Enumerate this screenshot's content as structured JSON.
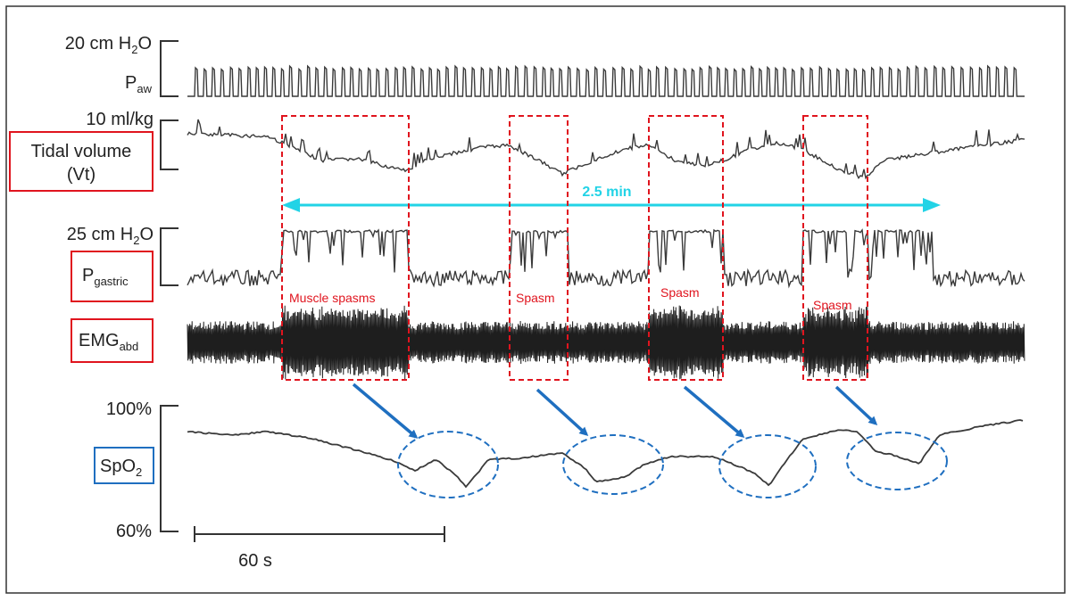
{
  "chart_data": {
    "type": "line",
    "colors": {
      "trace": "#3a3a3a",
      "spasm_box": "#e0141e",
      "duration_arrow": "#22d3e6",
      "desat_arrow": "#1f6fc0",
      "desat_ellipse": "#1f6fc0",
      "frame": "#333333"
    },
    "traces": [
      {
        "key": "paw",
        "scale": "20 cm H2O",
        "scale_main": "20 cm H",
        "scale_sub": "2",
        "scale_tail": "O",
        "name_main": "P",
        "name_sub": "aw",
        "boxed": false
      },
      {
        "key": "vt",
        "scale": "10 ml/kg",
        "name_line1": "Tidal volume",
        "name_line2": "(Vt)",
        "boxed": true,
        "box_color": "#e0141e"
      },
      {
        "key": "pgastric",
        "scale": "25 cm H2O",
        "scale_main": "25 cm H",
        "scale_sub": "2",
        "scale_tail": "O",
        "name_main": "P",
        "name_sub": "gastric",
        "boxed": true,
        "box_color": "#e0141e"
      },
      {
        "key": "emg",
        "name_main": "EMG",
        "name_sub": "abd",
        "boxed": true,
        "box_color": "#e0141e"
      },
      {
        "key": "spo2",
        "ytick_top": "100%",
        "ytick_bottom": "60%",
        "name_main": "SpO",
        "name_sub": "2",
        "boxed": true,
        "box_color": "#1f6fc0"
      }
    ],
    "spasm_episodes": [
      {
        "label": "Muscle spasms"
      },
      {
        "label": "Spasm"
      },
      {
        "label": "Spasm"
      },
      {
        "label": "Spasm"
      }
    ],
    "duration_label": "2.5 min",
    "time_scale_label": "60 s",
    "desaturation_count": 4
  }
}
